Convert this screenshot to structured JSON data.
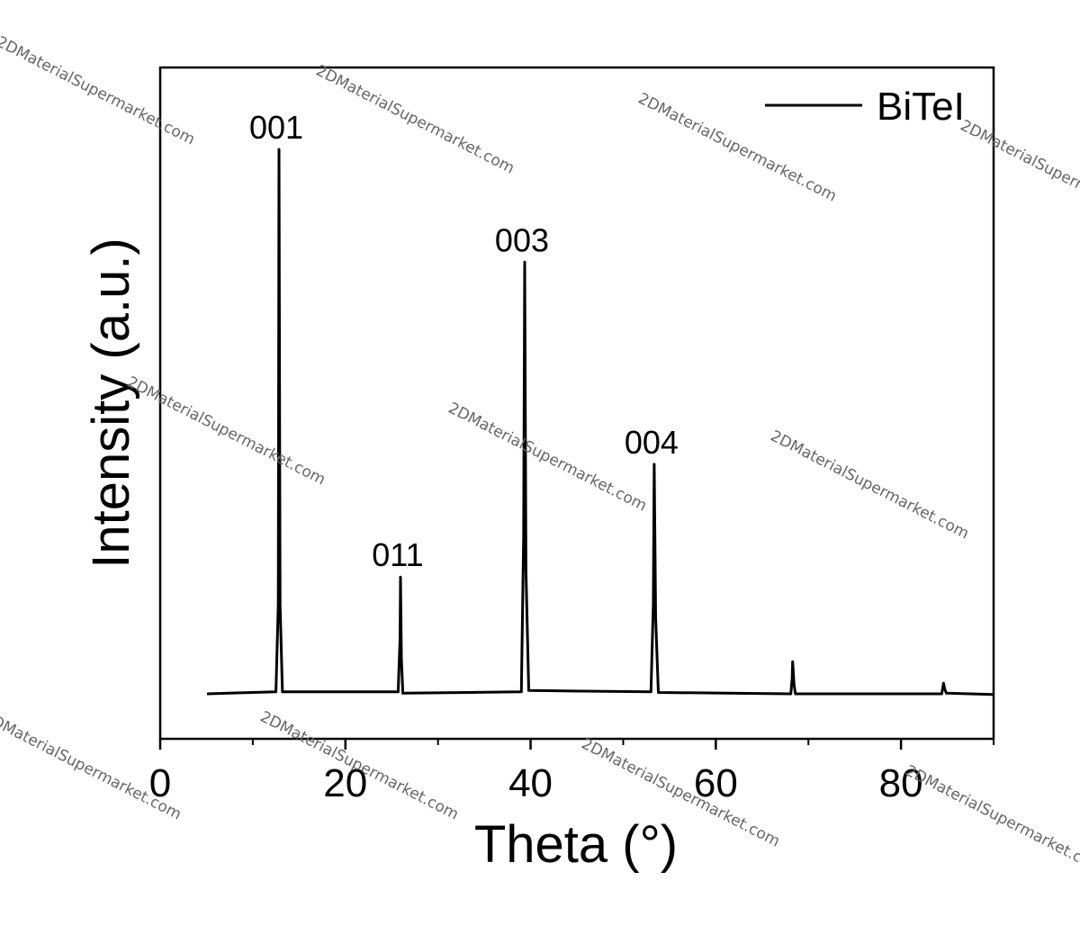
{
  "chart_data": {
    "type": "line",
    "xlabel": "Theta (°)",
    "ylabel": "Intensity (a.u.)",
    "xlim": [
      0,
      90
    ],
    "ylim": [
      0,
      100
    ],
    "xticks": [
      0,
      20,
      40,
      60,
      80
    ],
    "xticks_minor": [
      10,
      30,
      50,
      70,
      90
    ],
    "legend": "upper right",
    "x": [
      5.05,
      12.5,
      12.75,
      12.83,
      12.95,
      13.2,
      25.7,
      25.9,
      25.95,
      26.05,
      26.2,
      39.0,
      39.25,
      39.36,
      39.5,
      39.8,
      53.0,
      53.25,
      53.35,
      53.5,
      53.8,
      68.1,
      68.25,
      68.3,
      68.45,
      68.6,
      84.4,
      84.6,
      84.7,
      84.9,
      90
    ],
    "series": [
      {
        "name": "BiTeI",
        "color": "#000000",
        "values": [
          6.7,
          7.0,
          20,
          87.8,
          20,
          7.0,
          7.0,
          15,
          24.1,
          12,
          6.8,
          7.0,
          30,
          71.0,
          25,
          7.2,
          7.0,
          20,
          40.9,
          18,
          6.9,
          6.7,
          9,
          11.5,
          8,
          6.7,
          6.7,
          8.3,
          7.5,
          6.8,
          6.6
        ]
      }
    ],
    "annotations": [
      {
        "text": "001",
        "x": 12.83
      },
      {
        "text": "011",
        "x": 25.95
      },
      {
        "text": "003",
        "x": 39.36
      },
      {
        "text": "004",
        "x": 53.35
      }
    ],
    "watermark": "2DMaterialSupermarket.com"
  }
}
